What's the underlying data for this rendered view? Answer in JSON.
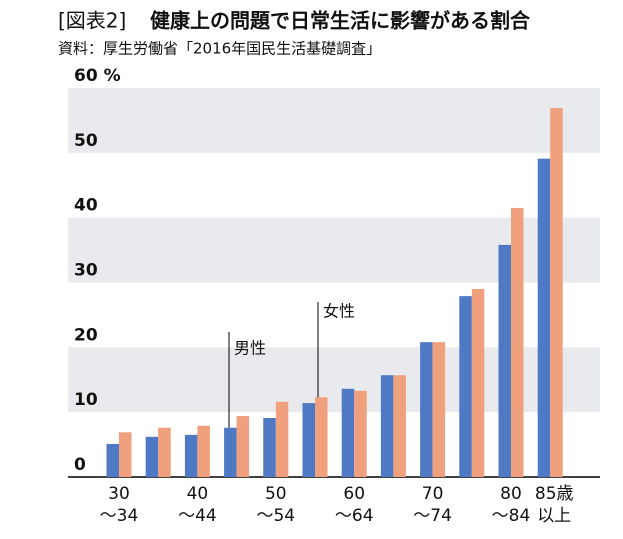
{
  "chart_data": {
    "type": "bar",
    "label": "[図表2]",
    "title": "健康上の問題で日常生活に影響がある割合",
    "subtitle": "資料：厚生労働省「2016年国民生活基礎調査」",
    "categories": [
      [
        "30",
        "～34"
      ],
      null,
      [
        "40",
        "～44"
      ],
      null,
      [
        "50",
        "～54"
      ],
      null,
      [
        "60",
        "～64"
      ],
      null,
      [
        "70",
        "～74"
      ],
      null,
      [
        "80",
        "～84"
      ],
      [
        "85歳",
        "以上"
      ]
    ],
    "series": [
      {
        "name": "男性",
        "color": "#4f79c4",
        "values": [
          5.1,
          6.2,
          6.5,
          7.6,
          9.1,
          11.4,
          13.6,
          15.7,
          20.8,
          27.9,
          35.8,
          49.1
        ]
      },
      {
        "name": "女性",
        "color": "#f0a07c",
        "values": [
          6.9,
          7.6,
          7.9,
          9.4,
          11.6,
          12.3,
          13.3,
          15.7,
          20.8,
          29.0,
          41.5,
          56.9
        ]
      }
    ],
    "ylim": [
      0,
      60
    ],
    "yticks": [
      0,
      10,
      20,
      30,
      40,
      50,
      {
        "value": 60,
        "label": "60 %"
      }
    ],
    "band_color": "#e8eaed"
  }
}
